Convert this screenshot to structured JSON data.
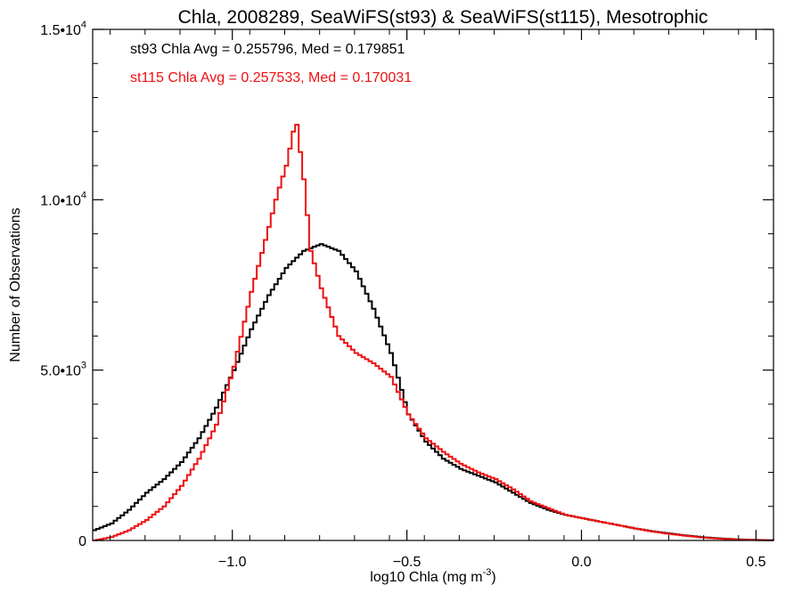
{
  "chart_data": {
    "type": "line",
    "title": "Chla, 2008289, SeaWiFS(st93) & SeaWiFS(st115), Mesotrophic",
    "xlabel": "log10 Chla (mg m",
    "xlabel_sup": "-3",
    "xlabel_end": ")",
    "ylabel": "Number of Observations",
    "xlim": [
      -1.4,
      0.55
    ],
    "ylim": [
      0,
      15000
    ],
    "grid": false,
    "x_ticks": [
      {
        "value": -1.0,
        "label": "−1.0"
      },
      {
        "value": -0.5,
        "label": "−0.5"
      },
      {
        "value": 0.0,
        "label": "0.0"
      },
      {
        "value": 0.5,
        "label": "0.5"
      }
    ],
    "y_ticks": [
      {
        "value": 0,
        "base": "0",
        "exp": ""
      },
      {
        "value": 5000,
        "base": "5.0•10",
        "exp": "3"
      },
      {
        "value": 10000,
        "base": "1.0•10",
        "exp": "4"
      },
      {
        "value": 15000,
        "base": "1.5•10",
        "exp": "4"
      }
    ],
    "annotations": [
      {
        "text": "st93 Chla Avg = 0.255796, Med = 0.179851",
        "color": "#000000"
      },
      {
        "text": "st115 Chla Avg = 0.257533, Med = 0.170031",
        "color": "#ee1111"
      }
    ],
    "series": [
      {
        "color": "#000000",
        "x": [
          -1.4,
          -1.35,
          -1.3,
          -1.25,
          -1.2,
          -1.15,
          -1.1,
          -1.05,
          -1.0,
          -0.95,
          -0.9,
          -0.85,
          -0.8,
          -0.75,
          -0.7,
          -0.65,
          -0.6,
          -0.55,
          -0.5,
          -0.45,
          -0.4,
          -0.35,
          -0.3,
          -0.25,
          -0.2,
          -0.15,
          -0.1,
          -0.05,
          0.0,
          0.05,
          0.1,
          0.15,
          0.2,
          0.25,
          0.3,
          0.35,
          0.4,
          0.45,
          0.5,
          0.55
        ],
        "y": [
          300,
          500,
          900,
          1400,
          1800,
          2300,
          3000,
          3900,
          5000,
          6200,
          7200,
          8000,
          8500,
          8700,
          8500,
          7900,
          6800,
          5500,
          3700,
          2900,
          2400,
          2100,
          1900,
          1700,
          1400,
          1100,
          900,
          750,
          650,
          550,
          450,
          350,
          270,
          200,
          140,
          90,
          55,
          30,
          15,
          5
        ]
      },
      {
        "color": "#ee1111",
        "x": [
          -1.4,
          -1.35,
          -1.3,
          -1.25,
          -1.2,
          -1.15,
          -1.1,
          -1.05,
          -1.0,
          -0.95,
          -0.9,
          -0.875,
          -0.85,
          -0.83,
          -0.82,
          -0.8,
          -0.78,
          -0.75,
          -0.7,
          -0.65,
          -0.6,
          -0.55,
          -0.5,
          -0.45,
          -0.4,
          -0.35,
          -0.3,
          -0.25,
          -0.2,
          -0.15,
          -0.1,
          -0.05,
          0.0,
          0.05,
          0.1,
          0.15,
          0.2,
          0.25,
          0.3,
          0.35,
          0.4,
          0.45,
          0.5,
          0.55
        ],
        "y": [
          0,
          100,
          300,
          600,
          1000,
          1600,
          2400,
          3400,
          5100,
          7300,
          9200,
          10200,
          11000,
          12000,
          12200,
          10600,
          8500,
          7400,
          6000,
          5500,
          5200,
          4800,
          3700,
          3000,
          2600,
          2250,
          2000,
          1800,
          1500,
          1150,
          950,
          750,
          650,
          550,
          450,
          350,
          260,
          190,
          130,
          80,
          45,
          22,
          10,
          3
        ]
      }
    ]
  }
}
